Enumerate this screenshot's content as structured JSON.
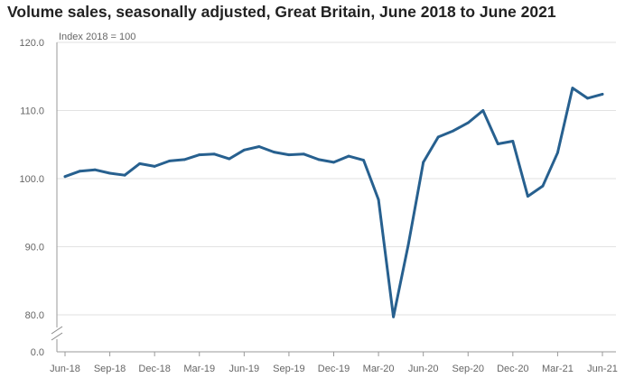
{
  "chart_data": {
    "type": "line",
    "title": "Volume sales, seasonally adjusted, Great Britain, June 2018 to June 2021",
    "unit_label": "Index 2018 = 100",
    "y_ticks": [
      "120.0",
      "110.0",
      "100.0",
      "90.0",
      "80.0",
      "0.0"
    ],
    "ylim": [
      80,
      120
    ],
    "axis_break": true,
    "grid": true,
    "x_tick_labels": [
      "Jun-18",
      "Sep-18",
      "Dec-18",
      "Mar-19",
      "Jun-19",
      "Sep-19",
      "Dec-19",
      "Mar-20",
      "Jun-20",
      "Sep-20",
      "Dec-20",
      "Mar-21",
      "Jun-21"
    ],
    "x": [
      "Jun-18",
      "Jul-18",
      "Aug-18",
      "Sep-18",
      "Oct-18",
      "Nov-18",
      "Dec-18",
      "Jan-19",
      "Feb-19",
      "Mar-19",
      "Apr-19",
      "May-19",
      "Jun-19",
      "Jul-19",
      "Aug-19",
      "Sep-19",
      "Oct-19",
      "Nov-19",
      "Dec-19",
      "Jan-20",
      "Feb-20",
      "Mar-20",
      "Apr-20",
      "May-20",
      "Jun-20",
      "Jul-20",
      "Aug-20",
      "Sep-20",
      "Oct-20",
      "Nov-20",
      "Dec-20",
      "Jan-21",
      "Feb-21",
      "Mar-21",
      "Apr-21",
      "May-21",
      "Jun-21"
    ],
    "series": [
      {
        "values": [
          100.3,
          101.1,
          101.3,
          100.8,
          100.5,
          102.2,
          101.8,
          102.6,
          102.8,
          103.5,
          103.6,
          102.9,
          104.2,
          104.7,
          103.9,
          103.5,
          103.6,
          102.8,
          102.4,
          103.3,
          102.7,
          96.9,
          79.7,
          90.3,
          102.4,
          106.1,
          107.0,
          108.2,
          110.0,
          105.1,
          105.5,
          97.4,
          98.9,
          103.8,
          113.3,
          111.8,
          112.4
        ],
        "color": "#27608f"
      }
    ]
  }
}
